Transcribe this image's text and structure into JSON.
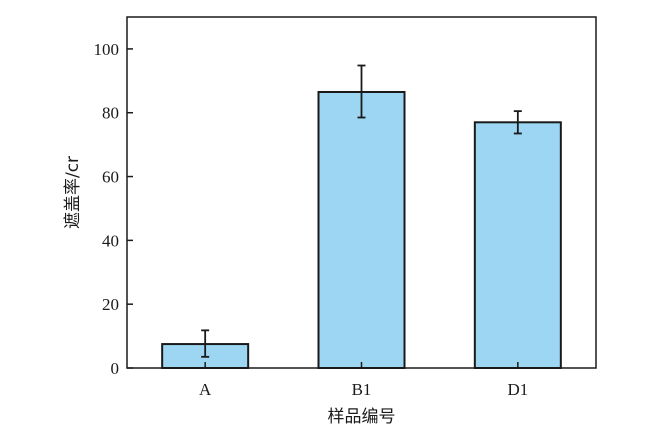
{
  "chart_data": {
    "type": "bar",
    "categories": [
      "A",
      "B1",
      "D1"
    ],
    "values": [
      7.5,
      86.5,
      77
    ],
    "error_low": [
      3.5,
      78.5,
      73.5
    ],
    "error_high": [
      11.8,
      94.8,
      80.5
    ],
    "xlabel": "样品编号",
    "ylabel": "遮盖率/cr",
    "ylim": [
      0,
      110
    ],
    "yticks": [
      0,
      20,
      40,
      60,
      80,
      100
    ],
    "ytick_labels": [
      "0",
      "20",
      "40",
      "60",
      "80",
      "100"
    ],
    "grid": false,
    "legend": "none",
    "bar_color": "#9dd6f2",
    "bar_edge_color": "#1a1a1a"
  }
}
